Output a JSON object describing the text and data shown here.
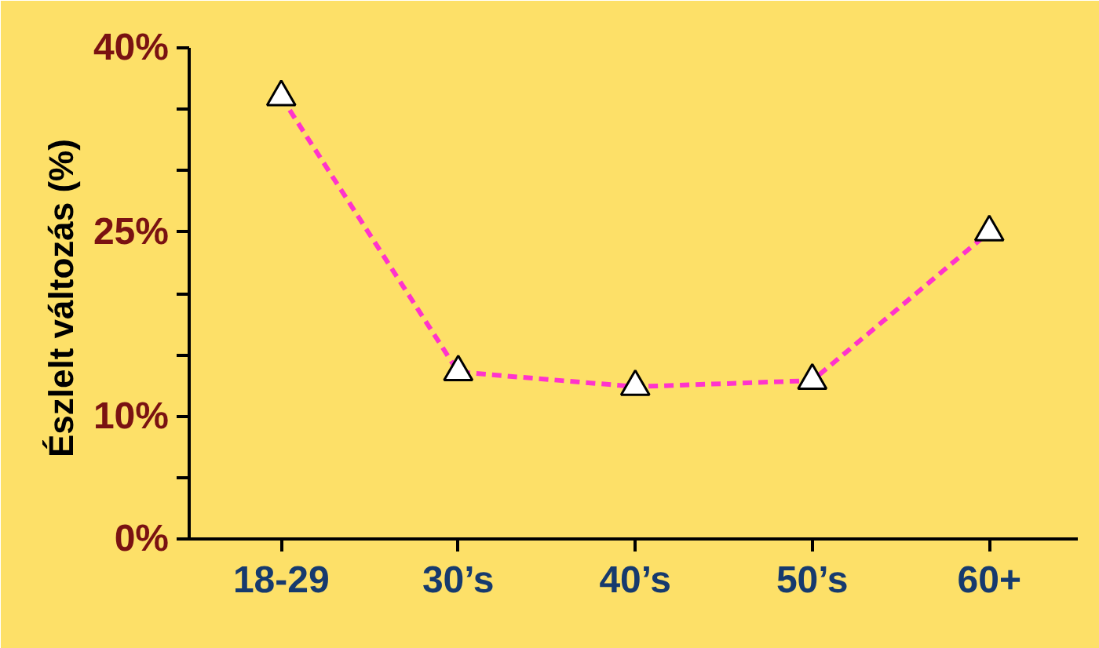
{
  "chart_data": {
    "type": "line",
    "ylabel": "Észlelt változás  (%)",
    "categories": [
      "18-29",
      "30’s",
      "40’s",
      "50’s",
      "60+"
    ],
    "series": [
      {
        "color": "#ff33cc",
        "values": [
          36,
          13.6,
          12.4,
          12.9,
          25
        ]
      }
    ],
    "ylim": [
      0,
      40
    ],
    "yticks": [
      {
        "value": 0,
        "label": "0%"
      },
      {
        "value": 5,
        "label": null
      },
      {
        "value": 10,
        "label": "10%"
      },
      {
        "value": 15,
        "label": null
      },
      {
        "value": 20,
        "label": null
      },
      {
        "value": 25,
        "label": "25%"
      },
      {
        "value": 30,
        "label": null
      },
      {
        "value": 35,
        "label": null
      },
      {
        "value": 40,
        "label": "40%"
      }
    ],
    "marker": "triangle",
    "line_style": "dashed",
    "grid": false
  }
}
